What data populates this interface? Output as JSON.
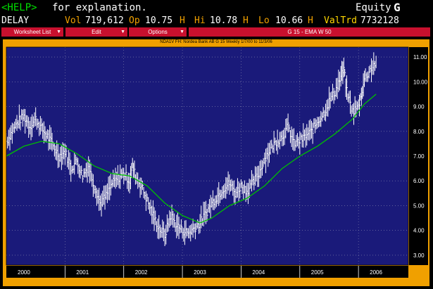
{
  "header": {
    "help_key": "<HELP>",
    "help_text": "for explanation.",
    "market_sector": "Equity",
    "function_key": "G",
    "delay": "DELAY",
    "vol_label": "Vol",
    "vol_value": "719,612",
    "op_label": "Op",
    "op_value": "10.75",
    "op_flag": "H",
    "hi_label": "Hi",
    "hi_value": "10.78",
    "hi_flag": "H",
    "lo_label": "Lo",
    "lo_value": "10.66",
    "lo_flag": "H",
    "valtrd_label": "ValTrd",
    "valtrd_value": "7732128"
  },
  "menu": {
    "worksheet_list": "Worksheet List",
    "edit": "Edit",
    "options": "Options",
    "study": "G 15 - EMA W 50"
  },
  "colors": {
    "accent": "#c8102e",
    "frame": "#f0a000",
    "plot_bg": "#1a1a7a",
    "price_bars": "#ffffff",
    "ema_line": "#00c000",
    "header_orange": "#f0a000",
    "header_yellow": "#ffd700",
    "help_green": "#00e000"
  },
  "chart_data": {
    "type": "line",
    "title": "NDA1V FH: Nordea Bank AB G 15 Weekly 1/7/00 to 11/3/06",
    "x_categories": [
      "2000",
      "2001",
      "2002",
      "2003",
      "2004",
      "2005",
      "2006"
    ],
    "ylim": [
      2.6,
      11.4
    ],
    "y_ticks": [
      "3.00",
      "4.00",
      "5.00",
      "6.00",
      "7.00",
      "8.00",
      "9.00",
      "10.00",
      "11.00"
    ],
    "grid": true,
    "series": [
      {
        "kind": "price",
        "points": [
          [
            2000.0,
            7.6
          ],
          [
            2000.1,
            8.0
          ],
          [
            2000.2,
            8.4
          ],
          [
            2000.3,
            8.6
          ],
          [
            2000.4,
            8.2
          ],
          [
            2000.5,
            8.5
          ],
          [
            2000.6,
            8.1
          ],
          [
            2000.7,
            7.8
          ],
          [
            2000.8,
            7.4
          ],
          [
            2000.9,
            7.0
          ],
          [
            2001.0,
            7.2
          ],
          [
            2001.1,
            6.5
          ],
          [
            2001.2,
            6.8
          ],
          [
            2001.3,
            6.2
          ],
          [
            2001.4,
            6.6
          ],
          [
            2001.5,
            5.8
          ],
          [
            2001.6,
            5.1
          ],
          [
            2001.7,
            5.4
          ],
          [
            2001.8,
            5.9
          ],
          [
            2001.9,
            6.1
          ],
          [
            2002.0,
            6.3
          ],
          [
            2002.1,
            6.0
          ],
          [
            2002.15,
            6.6
          ],
          [
            2002.2,
            6.2
          ],
          [
            2002.3,
            5.8
          ],
          [
            2002.4,
            5.2
          ],
          [
            2002.5,
            4.6
          ],
          [
            2002.6,
            4.1
          ],
          [
            2002.7,
            3.8
          ],
          [
            2002.8,
            4.6
          ],
          [
            2002.9,
            4.2
          ],
          [
            2003.0,
            4.0
          ],
          [
            2003.1,
            3.9
          ],
          [
            2003.2,
            4.1
          ],
          [
            2003.3,
            4.3
          ],
          [
            2003.4,
            4.7
          ],
          [
            2003.5,
            5.1
          ],
          [
            2003.6,
            5.4
          ],
          [
            2003.7,
            5.7
          ],
          [
            2003.8,
            5.9
          ],
          [
            2003.9,
            5.5
          ],
          [
            2004.0,
            5.8
          ],
          [
            2004.1,
            5.6
          ],
          [
            2004.2,
            5.9
          ],
          [
            2004.3,
            6.3
          ],
          [
            2004.4,
            6.9
          ],
          [
            2004.5,
            7.3
          ],
          [
            2004.6,
            7.6
          ],
          [
            2004.7,
            7.8
          ],
          [
            2004.8,
            8.2
          ],
          [
            2004.9,
            7.5
          ],
          [
            2005.0,
            7.6
          ],
          [
            2005.1,
            7.8
          ],
          [
            2005.2,
            8.0
          ],
          [
            2005.3,
            8.4
          ],
          [
            2005.4,
            8.7
          ],
          [
            2005.5,
            9.2
          ],
          [
            2005.6,
            9.6
          ],
          [
            2005.7,
            10.2
          ],
          [
            2005.75,
            10.5
          ],
          [
            2005.8,
            9.6
          ],
          [
            2005.9,
            8.8
          ],
          [
            2006.0,
            9.0
          ],
          [
            2006.05,
            9.5
          ],
          [
            2006.1,
            10.1
          ],
          [
            2006.2,
            10.5
          ],
          [
            2006.3,
            10.8
          ]
        ]
      },
      {
        "kind": "ema",
        "name": "EMA W 50",
        "points": [
          [
            2000.0,
            7.0
          ],
          [
            2000.3,
            7.4
          ],
          [
            2000.6,
            7.6
          ],
          [
            2000.9,
            7.5
          ],
          [
            2001.2,
            7.1
          ],
          [
            2001.5,
            6.6
          ],
          [
            2001.8,
            6.3
          ],
          [
            2002.1,
            6.2
          ],
          [
            2002.4,
            5.8
          ],
          [
            2002.7,
            5.1
          ],
          [
            2003.0,
            4.6
          ],
          [
            2003.3,
            4.3
          ],
          [
            2003.5,
            4.5
          ],
          [
            2003.8,
            5.0
          ],
          [
            2004.1,
            5.3
          ],
          [
            2004.4,
            5.8
          ],
          [
            2004.7,
            6.5
          ],
          [
            2005.0,
            7.0
          ],
          [
            2005.3,
            7.4
          ],
          [
            2005.6,
            7.9
          ],
          [
            2005.9,
            8.5
          ],
          [
            2006.1,
            9.1
          ],
          [
            2006.3,
            9.5
          ]
        ]
      }
    ]
  }
}
